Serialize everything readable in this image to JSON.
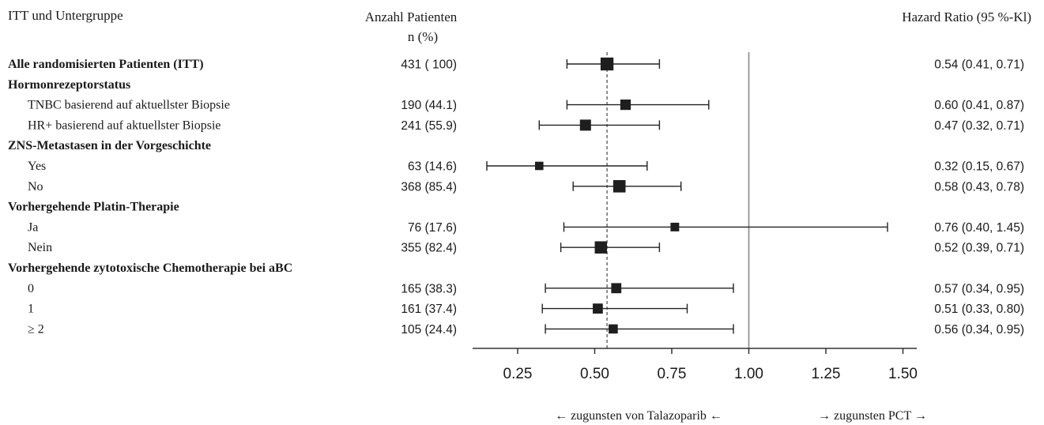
{
  "headers": {
    "subgroup": "ITT und Untergruppe",
    "n_line1": "Anzahl Patienten",
    "n_line2": "n (%)",
    "hr": "Hazard Ratio (95 %-Kl)"
  },
  "footer": {
    "left": "← zugunsten von Talazoparib ←",
    "right": "→ zugunsten  PCT →"
  },
  "rows": [
    {
      "label": "Alle randomisierten  Patienten  (ITT)",
      "bold": true,
      "n": "431 ( 100)",
      "ci_text": "0.54 (0.41, 0.71)"
    },
    {
      "label": "Hormonrezeptorstatus",
      "bold": true
    },
    {
      "label": "TNBC basierend auf aktuellster Biopsie",
      "bold": false,
      "n": "190 (44.1)",
      "ci_text": "0.60 (0.41, 0.87)"
    },
    {
      "label": "HR+ basierend auf aktuellster Biopsie",
      "bold": false,
      "n": "241 (55.9)",
      "ci_text": "0.47 (0.32, 0.71)"
    },
    {
      "label": "ZNS-Metastasen  in der Vorgeschichte",
      "bold": true
    },
    {
      "label": "Yes",
      "bold": false,
      "n": "63 (14.6)",
      "ci_text": "0.32 (0.15, 0.67)"
    },
    {
      "label": "No",
      "bold": false,
      "n": "368 (85.4)",
      "ci_text": "0.58 (0.43, 0.78)"
    },
    {
      "label": "Vorhergehende Platin-Therapie",
      "bold": true
    },
    {
      "label": "Ja",
      "bold": false,
      "n": "76 (17.6)",
      "ci_text": "0.76 (0.40, 1.45)"
    },
    {
      "label": "Nein",
      "bold": false,
      "n": "355 (82.4)",
      "ci_text": "0.52 (0.39, 0.71)"
    },
    {
      "label": "Vorhergehende zytotoxische Chemotherapie bei aBC",
      "bold": true
    },
    {
      "label": "0",
      "bold": false,
      "n": "165 (38.3)",
      "ci_text": "0.57 (0.34, 0.95)"
    },
    {
      "label": "1",
      "bold": false,
      "n": "161 (37.4)",
      "ci_text": "0.51 (0.33, 0.80)"
    },
    {
      "label": "≥ 2",
      "bold": false,
      "n": "105 (24.4)",
      "ci_text": "0.56 (0.34, 0.95)"
    }
  ],
  "chart_data": {
    "type": "forest",
    "xlim": [
      0.1,
      1.55
    ],
    "xticks": [
      0.25,
      0.5,
      0.75,
      1.0,
      1.25,
      1.5
    ],
    "xtick_labels": [
      "0.25",
      "0.50",
      "0.75",
      "1.00",
      "1.25",
      "1.50"
    ],
    "reference_line": 1.0,
    "overall_line": 0.54,
    "estimates": [
      {
        "subgroup": "Alle randomisierten  Patienten  (ITT)",
        "hr": 0.54,
        "lower": 0.41,
        "upper": 0.71,
        "n": 431
      },
      {
        "subgroup": "TNBC basierend auf aktuellster Biopsie",
        "hr": 0.6,
        "lower": 0.41,
        "upper": 0.87,
        "n": 190
      },
      {
        "subgroup": "HR+ basierend auf aktuellster Biopsie",
        "hr": 0.47,
        "lower": 0.32,
        "upper": 0.71,
        "n": 241
      },
      {
        "subgroup": "Yes",
        "hr": 0.32,
        "lower": 0.15,
        "upper": 0.67,
        "n": 63
      },
      {
        "subgroup": "No",
        "hr": 0.58,
        "lower": 0.43,
        "upper": 0.78,
        "n": 368
      },
      {
        "subgroup": "Ja",
        "hr": 0.76,
        "lower": 0.4,
        "upper": 1.45,
        "n": 76
      },
      {
        "subgroup": "Nein",
        "hr": 0.52,
        "lower": 0.39,
        "upper": 0.71,
        "n": 355
      },
      {
        "subgroup": "0",
        "hr": 0.57,
        "lower": 0.34,
        "upper": 0.95,
        "n": 165
      },
      {
        "subgroup": "1",
        "hr": 0.51,
        "lower": 0.33,
        "upper": 0.8,
        "n": 161
      },
      {
        "subgroup": "≥ 2",
        "hr": 0.56,
        "lower": 0.34,
        "upper": 0.95,
        "n": 105
      }
    ]
  }
}
